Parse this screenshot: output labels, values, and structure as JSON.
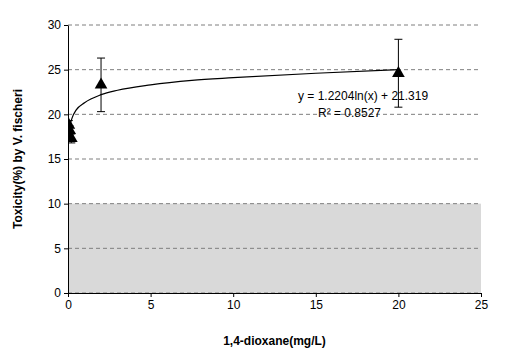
{
  "chart_data": {
    "type": "scatter",
    "x_label": "1,4-dioxane(mg/L)",
    "y_label": "Toxicity(%) by V. fischeri",
    "xlim": [
      0,
      25
    ],
    "xticks": [
      0,
      5,
      10,
      15,
      20,
      25
    ],
    "ylim": [
      0,
      30
    ],
    "yticks": [
      0,
      5,
      10,
      15,
      20,
      25,
      30
    ],
    "grid": true,
    "shaded_range": [
      0,
      10
    ],
    "annotations": [
      "y = 1.2204ln(x) + 21.319",
      "R² = 0.8527"
    ],
    "series": [
      {
        "type": "scatter",
        "marker": "triangle",
        "color": "#000000",
        "x": [
          0.05,
          0.1,
          0.2,
          2,
          20
        ],
        "values": [
          18.8,
          18.2,
          17.3,
          23.3,
          24.6
        ],
        "errors": [
          0.5,
          0.5,
          0.5,
          3.0,
          3.8
        ]
      },
      {
        "type": "line",
        "line_style": "solid",
        "color": "#000000",
        "x": [
          0.05,
          0.1,
          0.25,
          0.5,
          1,
          2,
          3,
          5,
          7.5,
          10,
          15,
          20
        ],
        "values": [
          17.7,
          18.5,
          19.6,
          20.5,
          21.3,
          22.2,
          22.7,
          23.3,
          23.8,
          24.1,
          24.6,
          25.0
        ]
      }
    ]
  }
}
